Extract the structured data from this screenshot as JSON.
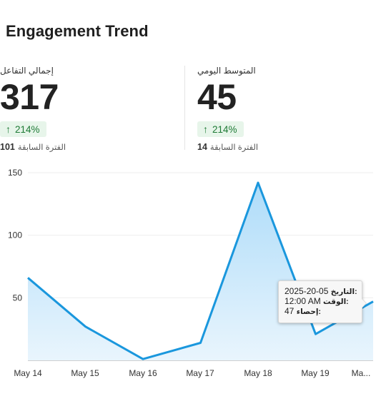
{
  "header": {
    "title": "Engagement Trend"
  },
  "metrics": [
    {
      "label": "إجمالي التفاعل",
      "value": "317",
      "change": "214%",
      "previous_value": "101",
      "previous_label": "الفترة السابقة"
    },
    {
      "label": "المتوسط اليومي",
      "value": "45",
      "change": "214%",
      "previous_value": "14",
      "previous_label": "الفترة السابقة"
    }
  ],
  "tooltip": {
    "date_key": "التاريخ:",
    "date_value": "2025-20-05",
    "time_key": "الوقت:",
    "time_value": "12:00 AM",
    "count_key": "إحصاء:",
    "count_value": "47"
  },
  "colors": {
    "line": "#1a97dd",
    "fill_top": "#aedcf9",
    "fill_bottom": "#e9f5fd",
    "badge_bg": "#e7f5ea",
    "badge_text": "#1e7a35"
  },
  "chart_data": {
    "type": "area",
    "categories": [
      "May 14",
      "May 15",
      "May 16",
      "May 17",
      "May 18",
      "May 19",
      "Ma..."
    ],
    "series": [
      {
        "values": [
          66,
          27,
          1,
          14,
          142,
          21,
          47
        ]
      }
    ],
    "y_ticks": [
      50,
      100,
      150
    ],
    "ylim": [
      0,
      150
    ],
    "grid": true,
    "legend": "none"
  }
}
